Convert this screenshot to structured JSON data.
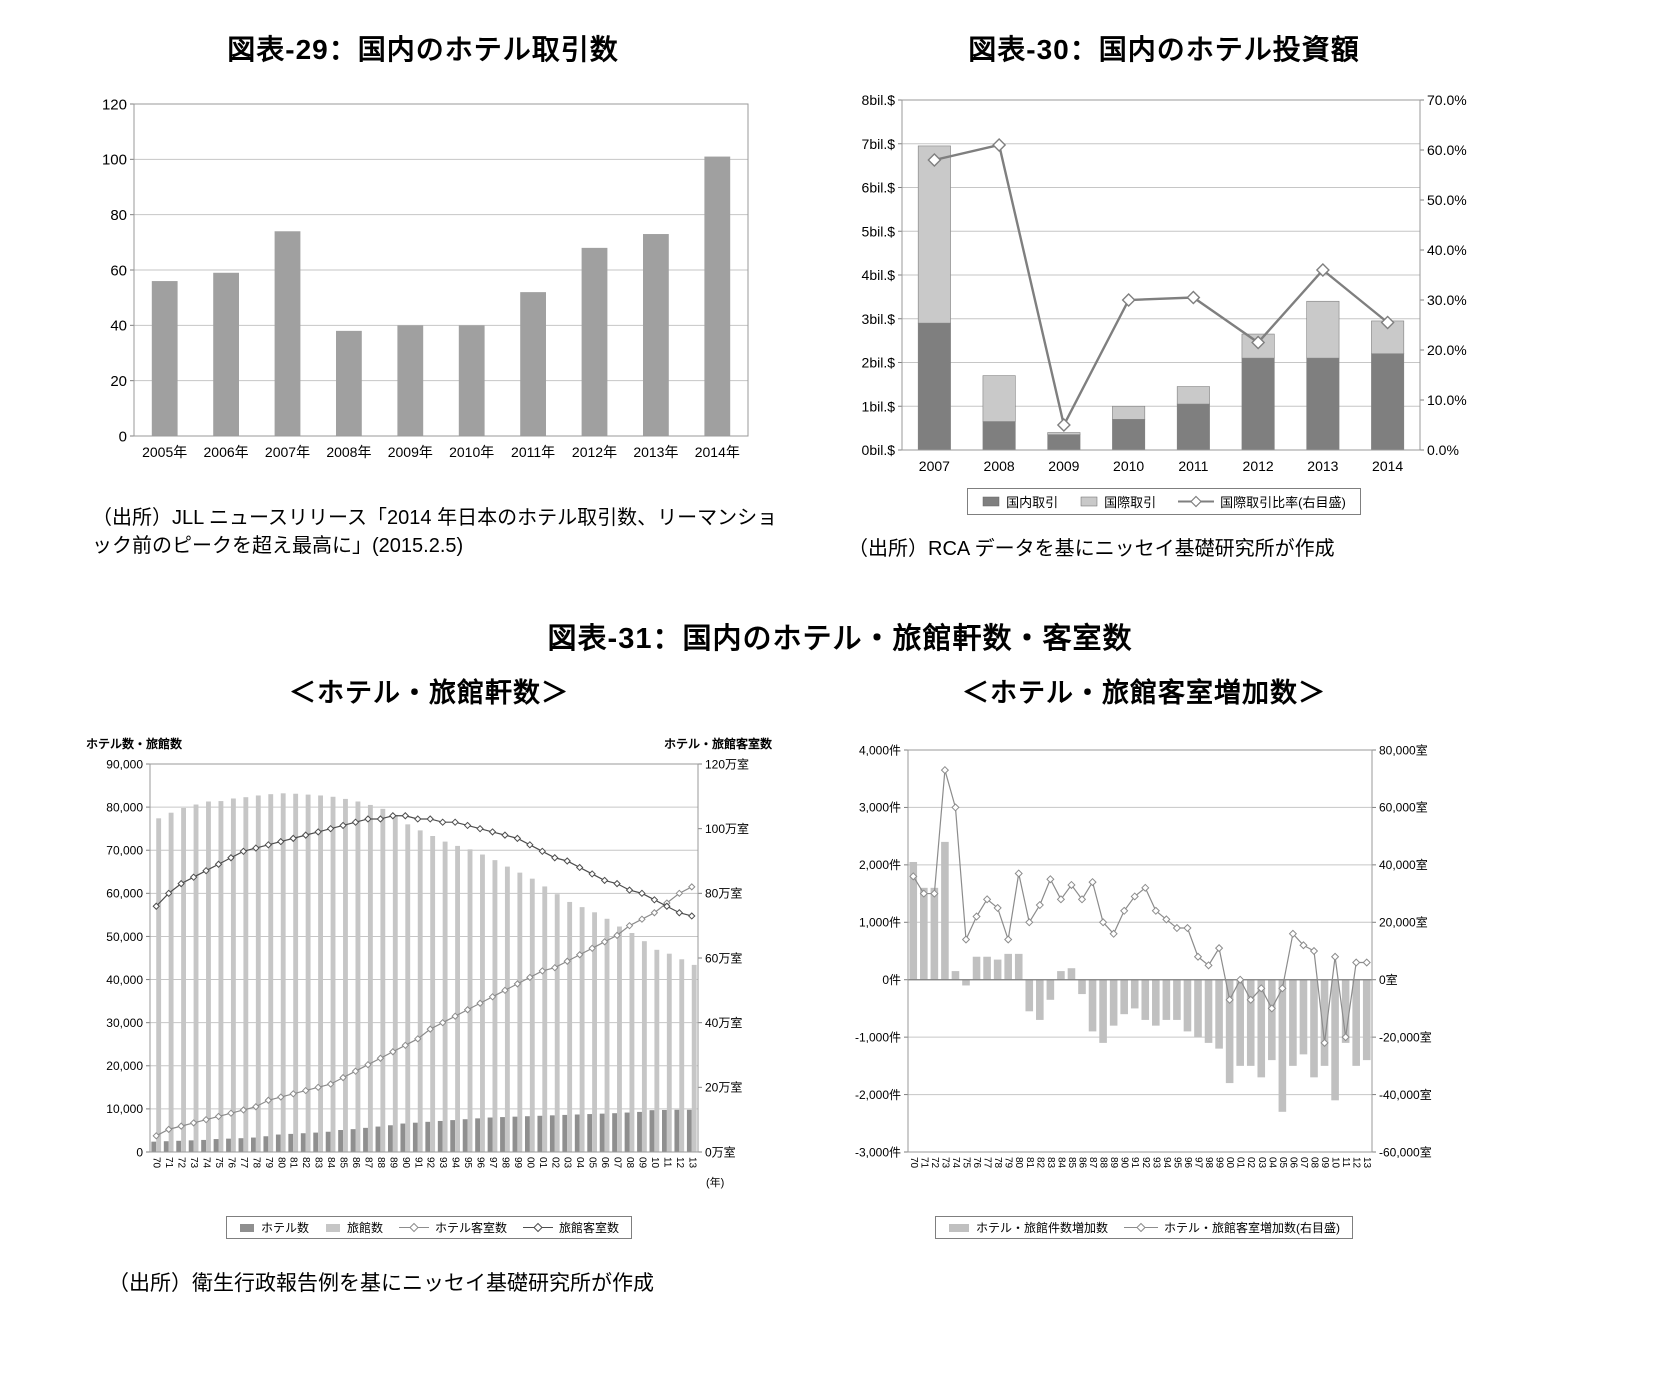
{
  "headings": {
    "fig31_title": "図表-31：国内のホテル・旅館軒数・客室数",
    "fig31_source": "（出所）衛生行政報告例を基にニッセイ基礎研究所が作成"
  },
  "chart_data": [
    {
      "id": "fig29",
      "type": "bar",
      "title": "図表-29：国内のホテル取引数",
      "categories": [
        "2005年",
        "2006年",
        "2007年",
        "2008年",
        "2009年",
        "2010年",
        "2011年",
        "2012年",
        "2013年",
        "2014年"
      ],
      "values": [
        56,
        59,
        74,
        38,
        40,
        40,
        52,
        68,
        73,
        101
      ],
      "bar_color": "#a0a0a0",
      "left_axis": {
        "min": 0,
        "max": 120,
        "step": 20
      },
      "source": "（出所）JLL ニュースリリース「2014 年日本のホテル取引数、リーマンショック前のピークを超え最高に」(2015.2.5)"
    },
    {
      "id": "fig30",
      "type": "stacked-bar-line",
      "title": "図表-30：国内のホテル投資額",
      "categories": [
        "2007",
        "2008",
        "2009",
        "2010",
        "2011",
        "2012",
        "2013",
        "2014"
      ],
      "series": [
        {
          "name": "国内取引",
          "type": "bar",
          "color": "#7f7f7f",
          "values": [
            2.9,
            0.65,
            0.35,
            0.7,
            1.05,
            2.1,
            2.1,
            2.2
          ]
        },
        {
          "name": "国際取引",
          "type": "bar",
          "color": "#c9c9c9",
          "values": [
            4.05,
            1.05,
            0.05,
            0.3,
            0.4,
            0.55,
            1.3,
            0.75
          ]
        },
        {
          "name": "国際取引比率(右目盛)",
          "type": "line",
          "axis": "right",
          "color": "#7f7f7f",
          "marker": "diamond",
          "values": [
            58,
            61,
            5,
            30,
            30.5,
            21.5,
            36,
            25.5
          ]
        }
      ],
      "left_axis": {
        "min": 0,
        "max": 8,
        "step": 1,
        "suffix": "bil.$"
      },
      "right_axis": {
        "min": 0,
        "max": 70,
        "step": 10,
        "suffix": "%",
        "decimals": 1
      },
      "source": "（出所）RCA データを基にニッセイ基礎研究所が作成"
    },
    {
      "id": "fig31a",
      "type": "grouped-bar-line",
      "title": "＜ホテル・旅館軒数＞",
      "left_axis_title": "ホテル数・旅館数",
      "right_axis_title": "ホテル・旅館客室数",
      "x_unit": "(年)",
      "categories": [
        "70",
        "71",
        "72",
        "73",
        "74",
        "75",
        "76",
        "77",
        "78",
        "79",
        "80",
        "81",
        "82",
        "83",
        "84",
        "85",
        "86",
        "87",
        "88",
        "89",
        "90",
        "91",
        "92",
        "93",
        "94",
        "95",
        "96",
        "97",
        "98",
        "99",
        "00",
        "01",
        "02",
        "03",
        "04",
        "05",
        "06",
        "07",
        "08",
        "09",
        "10",
        "11",
        "12",
        "13"
      ],
      "series": [
        {
          "name": "ホテル数",
          "type": "bar",
          "color": "#8f8f8f",
          "values": [
            2400,
            2500,
            2600,
            2700,
            2800,
            3000,
            3100,
            3200,
            3350,
            3650,
            4050,
            4200,
            4350,
            4500,
            4700,
            5100,
            5300,
            5600,
            5900,
            6200,
            6600,
            6800,
            7000,
            7200,
            7400,
            7600,
            7800,
            8000,
            8100,
            8200,
            8300,
            8400,
            8500,
            8600,
            8700,
            8800,
            8900,
            9000,
            9150,
            9300,
            9700,
            9750,
            9800,
            9800
          ]
        },
        {
          "name": "旅館数",
          "type": "bar",
          "color": "#c6c6c6",
          "values": [
            77400,
            78700,
            79800,
            80600,
            81300,
            81400,
            82000,
            82300,
            82700,
            83000,
            83200,
            83100,
            82900,
            82700,
            82400,
            81900,
            81300,
            80500,
            79600,
            78200,
            76000,
            74600,
            73300,
            72000,
            71000,
            70200,
            69000,
            67700,
            66200,
            64800,
            63400,
            61600,
            59800,
            58000,
            56800,
            55600,
            54100,
            52300,
            50800,
            48900,
            46900,
            46000,
            44700,
            43400
          ]
        },
        {
          "name": "ホテル客室数",
          "type": "line",
          "axis": "right",
          "color": "#8c8c8c",
          "marker": "diamond",
          "values": [
            5,
            7,
            8,
            9,
            10,
            11,
            12,
            13,
            14,
            16,
            17,
            18,
            19,
            20,
            21,
            23,
            25,
            27,
            29,
            31,
            33,
            35,
            38,
            40,
            42,
            44,
            46,
            48,
            50,
            52,
            54,
            56,
            57,
            59,
            61,
            63,
            65,
            67,
            70,
            72,
            74,
            77,
            80,
            82
          ]
        },
        {
          "name": "旅館客室数",
          "type": "line",
          "axis": "right",
          "color": "#4d4d4d",
          "marker": "diamond",
          "values": [
            76,
            80,
            83,
            85,
            87,
            89,
            91,
            93,
            94,
            95,
            96,
            97,
            98,
            99,
            100,
            101,
            102,
            103,
            103,
            104,
            104,
            103,
            103,
            102,
            102,
            101,
            100,
            99,
            98,
            97,
            95,
            93,
            91,
            90,
            88,
            86,
            84,
            83,
            81,
            80,
            78,
            76,
            74,
            73
          ]
        }
      ],
      "left_axis": {
        "min": 0,
        "max": 90000,
        "step": 10000,
        "thousands": true
      },
      "right_axis": {
        "min": 0,
        "max": 120,
        "step": 20,
        "suffix": "万室"
      }
    },
    {
      "id": "fig31b",
      "type": "bar-line",
      "title": "＜ホテル・旅館客室増加数＞",
      "categories": [
        "70",
        "71",
        "72",
        "73",
        "74",
        "75",
        "76",
        "77",
        "78",
        "79",
        "80",
        "81",
        "82",
        "83",
        "84",
        "85",
        "86",
        "87",
        "88",
        "89",
        "90",
        "91",
        "92",
        "93",
        "94",
        "95",
        "96",
        "97",
        "98",
        "99",
        "00",
        "01",
        "02",
        "03",
        "04",
        "05",
        "06",
        "07",
        "08",
        "09",
        "10",
        "11",
        "12",
        "13"
      ],
      "series": [
        {
          "name": "ホテル・旅館件数増加数",
          "type": "bar",
          "color": "#c0c0c0",
          "values": [
            2050,
            1600,
            1600,
            2400,
            150,
            -100,
            400,
            400,
            350,
            450,
            450,
            -550,
            -700,
            -350,
            150,
            200,
            -250,
            -900,
            -1100,
            -800,
            -600,
            -500,
            -700,
            -800,
            -700,
            -700,
            -900,
            -1000,
            -1100,
            -1200,
            -1800,
            -1500,
            -1500,
            -1700,
            -1400,
            -2300,
            -1500,
            -1300,
            -1700,
            -1500,
            -2100,
            -1100,
            -1500,
            -1400
          ]
        },
        {
          "name": "ホテル・旅館客室増加数(右目盛)",
          "type": "line",
          "axis": "right",
          "color": "#8c8c8c",
          "marker": "diamond",
          "values": [
            36000,
            30000,
            30000,
            73000,
            60000,
            14000,
            22000,
            28000,
            25000,
            14000,
            37000,
            20000,
            26000,
            35000,
            28000,
            33000,
            28000,
            34000,
            20000,
            16000,
            24000,
            29000,
            32000,
            24000,
            21000,
            18000,
            18000,
            8000,
            5000,
            11000,
            -7000,
            0,
            -7000,
            -3000,
            -10000,
            -3000,
            16000,
            12000,
            10000,
            -22000,
            8000,
            -20000,
            6000,
            6000
          ]
        }
      ],
      "left_axis": {
        "min": -3000,
        "max": 4000,
        "step": 1000,
        "suffix": "件",
        "thousands": true
      },
      "right_axis": {
        "min": -60000,
        "max": 80000,
        "step": 20000,
        "suffix": "室",
        "thousands": true
      }
    }
  ]
}
